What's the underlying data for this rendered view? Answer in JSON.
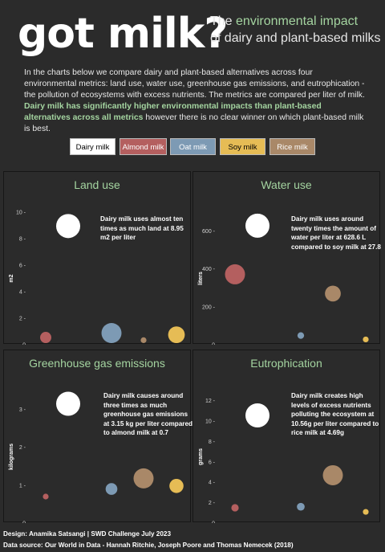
{
  "header": {
    "title": "got milk?",
    "subtitle_line1_prefix": "The ",
    "subtitle_line1_highlight": "environmental impact",
    "subtitle_line2": "of dairy and plant-based milks",
    "intro_text": "In the charts below we compare dairy and plant-based alternatives across four environmental metrics: land use, water use, greenhouse gas emissions, and eutrophication - the pollution of ecosystems with excess nutrients. The metrics are compared per liter of milk.",
    "intro_highlight": "Dairy milk has significantly higher environmental impacts than plant-based alternatives across all metrics",
    "intro_tail": " however there is no clear winner on which plant-based milk is best."
  },
  "legend": [
    {
      "label": "Dairy milk",
      "color": "#ffffff",
      "text_color": "#000000"
    },
    {
      "label": "Almond milk",
      "color": "#b45f5f",
      "text_color": "#ffffff"
    },
    {
      "label": "Oat milk",
      "color": "#7d9ab4",
      "text_color": "#ffffff"
    },
    {
      "label": "Soy milk",
      "color": "#e6bc55",
      "text_color": "#000000"
    },
    {
      "label": "Rice milk",
      "color": "#a98868",
      "text_color": "#ffffff"
    }
  ],
  "chart_data": [
    {
      "type": "scatter",
      "title": "Land use",
      "ylabel": "m2",
      "ylim": [
        0,
        10
      ],
      "yticks": [
        0,
        2,
        4,
        6,
        8,
        10
      ],
      "categories": [
        "Dairy milk",
        "Almond milk",
        "Oat milk",
        "Soy milk",
        "Rice milk"
      ],
      "values": [
        8.95,
        0.5,
        0.76,
        0.66,
        0.34
      ],
      "annotation": "Dairy milk uses almost ten times as much land at 8.95 m2 per liter"
    },
    {
      "type": "scatter",
      "title": "Water use",
      "ylabel": "liters",
      "ylim": [
        0,
        700
      ],
      "yticks": [
        0,
        200,
        400,
        600
      ],
      "categories": [
        "Dairy milk",
        "Almond milk",
        "Oat milk",
        "Soy milk",
        "Rice milk"
      ],
      "values": [
        628.6,
        371.5,
        48.2,
        27.8,
        269.8
      ],
      "annotation": "Dairy milk uses around twenty times the amount of water per liter at 628.6 L compared to soy milk at 27.8"
    },
    {
      "type": "scatter",
      "title": "Greenhouse gas emissions",
      "ylabel": "kilograms",
      "ylim": [
        0,
        3.5
      ],
      "yticks": [
        0,
        1,
        2,
        3
      ],
      "categories": [
        "Dairy milk",
        "Almond milk",
        "Oat milk",
        "Soy milk",
        "Rice milk"
      ],
      "values": [
        3.15,
        0.7,
        0.9,
        0.98,
        1.18
      ],
      "annotation": "Dairy milk causes around three times as much greenhouse gas emissions at 3.15 kg per liter compared to almond milk at 0.7"
    },
    {
      "type": "scatter",
      "title": "Eutrophication",
      "ylabel": "grams",
      "ylim": [
        0,
        13
      ],
      "yticks": [
        0,
        2,
        4,
        6,
        8,
        10,
        12
      ],
      "categories": [
        "Dairy milk",
        "Almond milk",
        "Oat milk",
        "Soy milk",
        "Rice milk"
      ],
      "values": [
        10.56,
        1.5,
        1.6,
        1.1,
        4.69
      ],
      "annotation": "Dairy milk creates high levels of excess nutrients polluting the ecosystem at 10.56g per liter compared to rice milk at 4.69g"
    }
  ],
  "footer": {
    "design": "Design: Anamika Satsangi  | SWD Challenge July 2023",
    "source": "Data source: Our World in Data - Hannah Ritchie, Joseph Poore and Thomas Nemecek (2018)"
  }
}
